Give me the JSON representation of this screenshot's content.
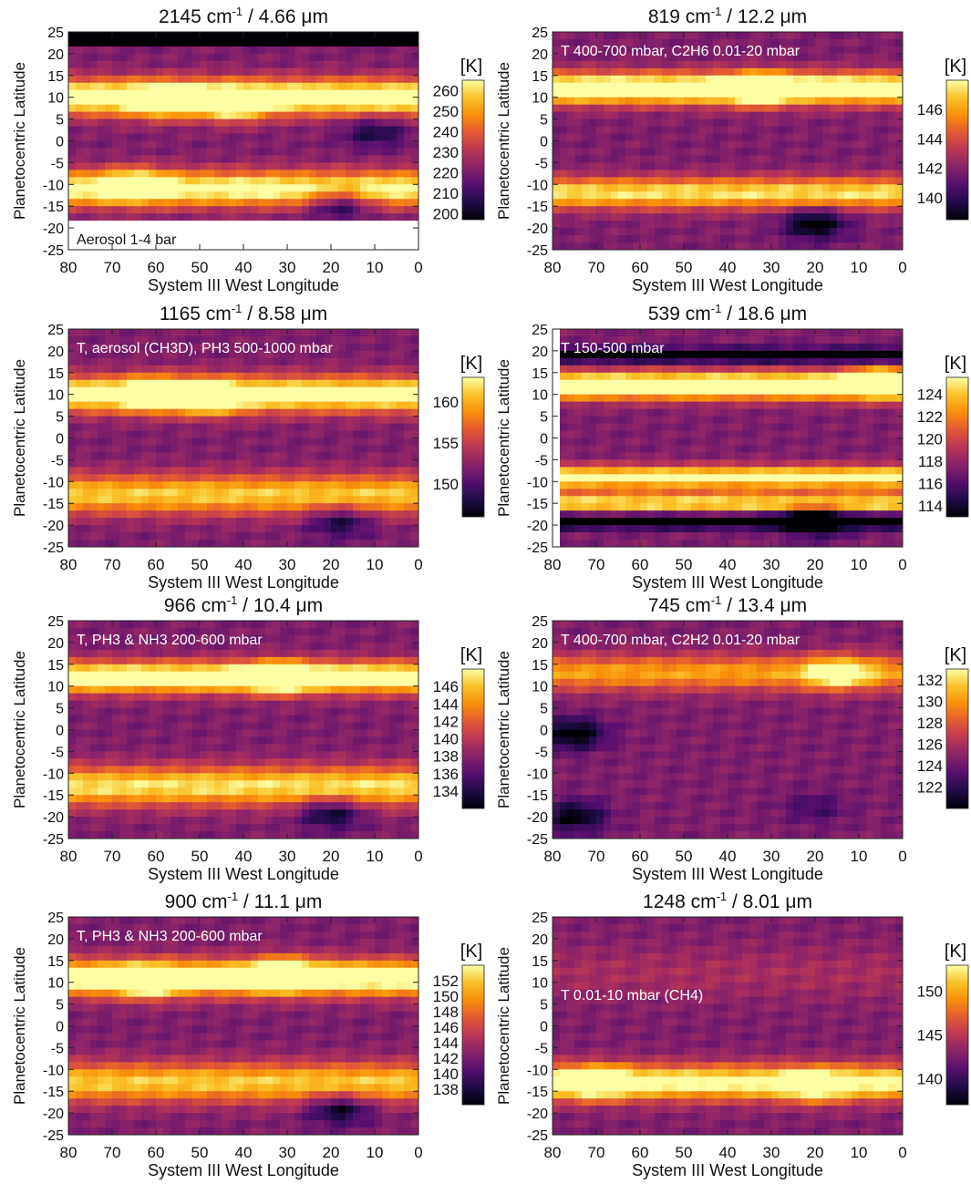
{
  "chart_data": [
    {
      "type": "heatmap",
      "title": "2145 cm-1 / 4.66 μm",
      "title_wavenumber": "2145 cm",
      "title_rest": " / 4.66 μm",
      "annotation": "Aerosol 1-4 bar",
      "annotation_position": "bottom-left",
      "xlabel": "System III West Longitude",
      "ylabel": "Planetocentric Latitude",
      "xlim": [
        80,
        0
      ],
      "ylim": [
        -25,
        25
      ],
      "xticks": [
        80,
        70,
        60,
        50,
        40,
        30,
        20,
        10,
        0
      ],
      "yticks": [
        25,
        20,
        15,
        10,
        5,
        0,
        -5,
        -10,
        -15,
        -20,
        -25
      ],
      "colorbar": {
        "label": "[K]",
        "range": [
          197,
          265
        ],
        "ticks": [
          200,
          210,
          220,
          230,
          240,
          250,
          260
        ]
      },
      "bands": [
        {
          "lat_center": 10,
          "width": 4,
          "level": 0.8
        },
        {
          "lat_center": -11,
          "width": 4,
          "level": 0.7
        }
      ],
      "spots": [
        {
          "lon": 58,
          "lat": 9,
          "level": 1.0
        },
        {
          "lon": 42,
          "lat": 8,
          "level": 0.95
        },
        {
          "lon": 65,
          "lat": -10,
          "level": 0.9
        },
        {
          "lon": 18,
          "lat": -14,
          "level": -0.8
        },
        {
          "lon": 10,
          "lat": 2,
          "level": -0.5
        }
      ],
      "masked_lat_above": 22,
      "masked_lat_below": -18
    },
    {
      "type": "heatmap",
      "title": "819 cm-1 / 12.2 μm",
      "title_wavenumber": "819 cm",
      "title_rest": " / 12.2 μm",
      "annotation": "T 400-700 mbar, C2H6 0.01-20 mbar",
      "annotation_position": "top-left",
      "xlabel": "System III West Longitude",
      "ylabel": "Planetocentric Latitude",
      "xlim": [
        80,
        0
      ],
      "ylim": [
        -25,
        25
      ],
      "xticks": [
        80,
        70,
        60,
        50,
        40,
        30,
        20,
        10,
        0
      ],
      "yticks": [
        25,
        20,
        15,
        10,
        5,
        0,
        -5,
        -10,
        -15,
        -20,
        -25
      ],
      "colorbar": {
        "label": "[K]",
        "range": [
          138.5,
          148
        ],
        "ticks": [
          140,
          142,
          144,
          146
        ]
      },
      "bands": [
        {
          "lat_center": 12,
          "width": 3.5,
          "level": 0.85
        },
        {
          "lat_center": -12,
          "width": 3.5,
          "level": 0.6
        }
      ],
      "spots": [
        {
          "lon": 33,
          "lat": 12,
          "level": 1.0
        },
        {
          "lon": 20,
          "lat": -19,
          "level": -0.8
        }
      ]
    },
    {
      "type": "heatmap",
      "title": "1165 cm-1 / 8.58 μm",
      "title_wavenumber": "1165 cm",
      "title_rest": " / 8.58 μm",
      "annotation": "T, aerosol (CH3D), PH3 500-1000 mbar",
      "annotation_position": "top-left",
      "xlabel": "System III West Longitude",
      "ylabel": "Planetocentric Latitude",
      "xlim": [
        80,
        0
      ],
      "ylim": [
        -25,
        25
      ],
      "xticks": [
        80,
        70,
        60,
        50,
        40,
        30,
        20,
        10,
        0
      ],
      "yticks": [
        25,
        20,
        15,
        10,
        5,
        0,
        -5,
        -10,
        -15,
        -20,
        -25
      ],
      "colorbar": {
        "label": "[K]",
        "range": [
          146,
          163
        ],
        "ticks": [
          150,
          155,
          160
        ]
      },
      "bands": [
        {
          "lat_center": 10,
          "width": 4,
          "level": 0.75
        },
        {
          "lat_center": -13,
          "width": 4.5,
          "level": 0.55
        }
      ],
      "spots": [
        {
          "lon": 60,
          "lat": 10,
          "level": 0.95
        },
        {
          "lon": 48,
          "lat": 9,
          "level": 1.0
        },
        {
          "lon": 18,
          "lat": -19,
          "level": -0.6
        }
      ]
    },
    {
      "type": "heatmap",
      "title": "539 cm-1 / 18.6 μm",
      "title_wavenumber": "539 cm",
      "title_rest": " / 18.6 μm",
      "annotation": "T 150-500 mbar",
      "annotation_position": "top-left",
      "xlabel": "System III West Longitude",
      "ylabel": "Planetocentric Latitude",
      "xlim": [
        80,
        0
      ],
      "ylim": [
        -25,
        25
      ],
      "xticks": [
        80,
        70,
        60,
        50,
        40,
        30,
        20,
        10,
        0
      ],
      "yticks": [
        25,
        20,
        15,
        10,
        5,
        0,
        -5,
        -10,
        -15,
        -20,
        -25
      ],
      "colorbar": {
        "label": "[K]",
        "range": [
          113,
          125.5
        ],
        "ticks": [
          114,
          116,
          118,
          120,
          122,
          124
        ]
      },
      "bands": [
        {
          "lat_center": 12,
          "width": 3,
          "level": 0.9
        },
        {
          "lat_center": -9,
          "width": 2.5,
          "level": 0.7
        },
        {
          "lat_center": -15,
          "width": 2.5,
          "level": 0.6
        },
        {
          "lat_center": -19,
          "width": 1.5,
          "level": -0.7
        },
        {
          "lat_center": 19,
          "width": 1.5,
          "level": -0.5
        }
      ],
      "spots": [
        {
          "lon": 5,
          "lat": 13,
          "level": 1.0
        },
        {
          "lon": 20,
          "lat": -19,
          "level": -0.9
        }
      ],
      "masked_lon_above": 78
    },
    {
      "type": "heatmap",
      "title": "966 cm-1 / 10.4 μm",
      "title_wavenumber": "966 cm",
      "title_rest": " / 10.4 μm",
      "annotation": "T, PH3 & NH3 200-600 mbar",
      "annotation_position": "top-left",
      "xlabel": "System III West Longitude",
      "ylabel": "Planetocentric Latitude",
      "xlim": [
        80,
        0
      ],
      "ylim": [
        -25,
        25
      ],
      "xticks": [
        80,
        70,
        60,
        50,
        40,
        30,
        20,
        10,
        0
      ],
      "yticks": [
        25,
        20,
        15,
        10,
        5,
        0,
        -5,
        -10,
        -15,
        -20,
        -25
      ],
      "colorbar": {
        "label": "[K]",
        "range": [
          132,
          148
        ],
        "ticks": [
          134,
          136,
          138,
          140,
          142,
          144,
          146
        ]
      },
      "bands": [
        {
          "lat_center": 12,
          "width": 3.5,
          "level": 0.8
        },
        {
          "lat_center": -13,
          "width": 4.5,
          "level": 0.6
        }
      ],
      "spots": [
        {
          "lon": 32,
          "lat": 12,
          "level": 1.0
        },
        {
          "lon": 20,
          "lat": -19,
          "level": -0.7
        }
      ]
    },
    {
      "type": "heatmap",
      "title": "745 cm-1 / 13.4 μm",
      "title_wavenumber": "745 cm",
      "title_rest": " / 13.4 μm",
      "annotation": "T 400-700 mbar, C2H2 0.01-20 mbar",
      "annotation_position": "top-left",
      "xlabel": "System III West Longitude",
      "ylabel": "Planetocentric Latitude",
      "xlim": [
        80,
        0
      ],
      "ylim": [
        -25,
        25
      ],
      "xticks": [
        80,
        70,
        60,
        50,
        40,
        30,
        20,
        10,
        0
      ],
      "yticks": [
        25,
        20,
        15,
        10,
        5,
        0,
        -5,
        -10,
        -15,
        -20,
        -25
      ],
      "colorbar": {
        "label": "[K]",
        "range": [
          120,
          133
        ],
        "ticks": [
          122,
          124,
          126,
          128,
          130,
          132
        ]
      },
      "bands": [
        {
          "lat_center": 13,
          "width": 4,
          "level": 0.45
        }
      ],
      "spots": [
        {
          "lon": 15,
          "lat": 13,
          "level": 0.9
        },
        {
          "lon": 75,
          "lat": -1,
          "level": -0.8
        },
        {
          "lon": 75,
          "lat": -20,
          "level": -0.7
        },
        {
          "lon": 20,
          "lat": -18,
          "level": -0.3
        }
      ]
    },
    {
      "type": "heatmap",
      "title": "900 cm-1 / 11.1 μm",
      "title_wavenumber": "900 cm",
      "title_rest": " / 11.1 μm",
      "annotation": "T, PH3 & NH3 200-600 mbar",
      "annotation_position": "top-left",
      "xlabel": "System III West Longitude",
      "ylabel": "Planetocentric Latitude",
      "xlim": [
        80,
        0
      ],
      "ylim": [
        -25,
        25
      ],
      "xticks": [
        80,
        70,
        60,
        50,
        40,
        30,
        20,
        10,
        0
      ],
      "yticks": [
        25,
        20,
        15,
        10,
        5,
        0,
        -5,
        -10,
        -15,
        -20,
        -25
      ],
      "colorbar": {
        "label": "[K]",
        "range": [
          136,
          154
        ],
        "ticks": [
          138,
          140,
          142,
          144,
          146,
          148,
          150,
          152
        ]
      },
      "bands": [
        {
          "lat_center": 11,
          "width": 4,
          "level": 0.8
        },
        {
          "lat_center": -13,
          "width": 4.5,
          "level": 0.55
        }
      ],
      "spots": [
        {
          "lon": 31,
          "lat": 12,
          "level": 1.0
        },
        {
          "lon": 62,
          "lat": 10,
          "level": 0.9
        },
        {
          "lon": 18,
          "lat": -19,
          "level": -0.7
        }
      ]
    },
    {
      "type": "heatmap",
      "title": "1248 cm-1 / 8.01 μm",
      "title_wavenumber": "1248 cm",
      "title_rest": " / 8.01 μm",
      "annotation": "T 0.01-10 mbar (CH4)",
      "annotation_position": "middle-left",
      "xlabel": "System III West Longitude",
      "ylabel": "Planetocentric Latitude",
      "xlim": [
        80,
        0
      ],
      "ylim": [
        -25,
        25
      ],
      "xticks": [
        80,
        70,
        60,
        50,
        40,
        30,
        20,
        10,
        0
      ],
      "yticks": [
        25,
        20,
        15,
        10,
        5,
        0,
        -5,
        -10,
        -15,
        -20,
        -25
      ],
      "colorbar": {
        "label": "[K]",
        "range": [
          137,
          153
        ],
        "ticks": [
          140,
          145,
          150
        ]
      },
      "bands": [
        {
          "lat_center": -13,
          "width": 4,
          "level": 0.7
        },
        {
          "lat_center": 12,
          "width": 6,
          "level": 0.1
        }
      ],
      "spots": [
        {
          "lon": 70,
          "lat": -13,
          "level": 0.9
        },
        {
          "lon": 20,
          "lat": -14,
          "level": 0.7
        }
      ]
    }
  ],
  "colors": {
    "colormap": [
      "#000004",
      "#1f0c48",
      "#550f6d",
      "#88226a",
      "#ba3655",
      "#e35933",
      "#f98e09",
      "#fac228",
      "#fcffa4"
    ]
  }
}
